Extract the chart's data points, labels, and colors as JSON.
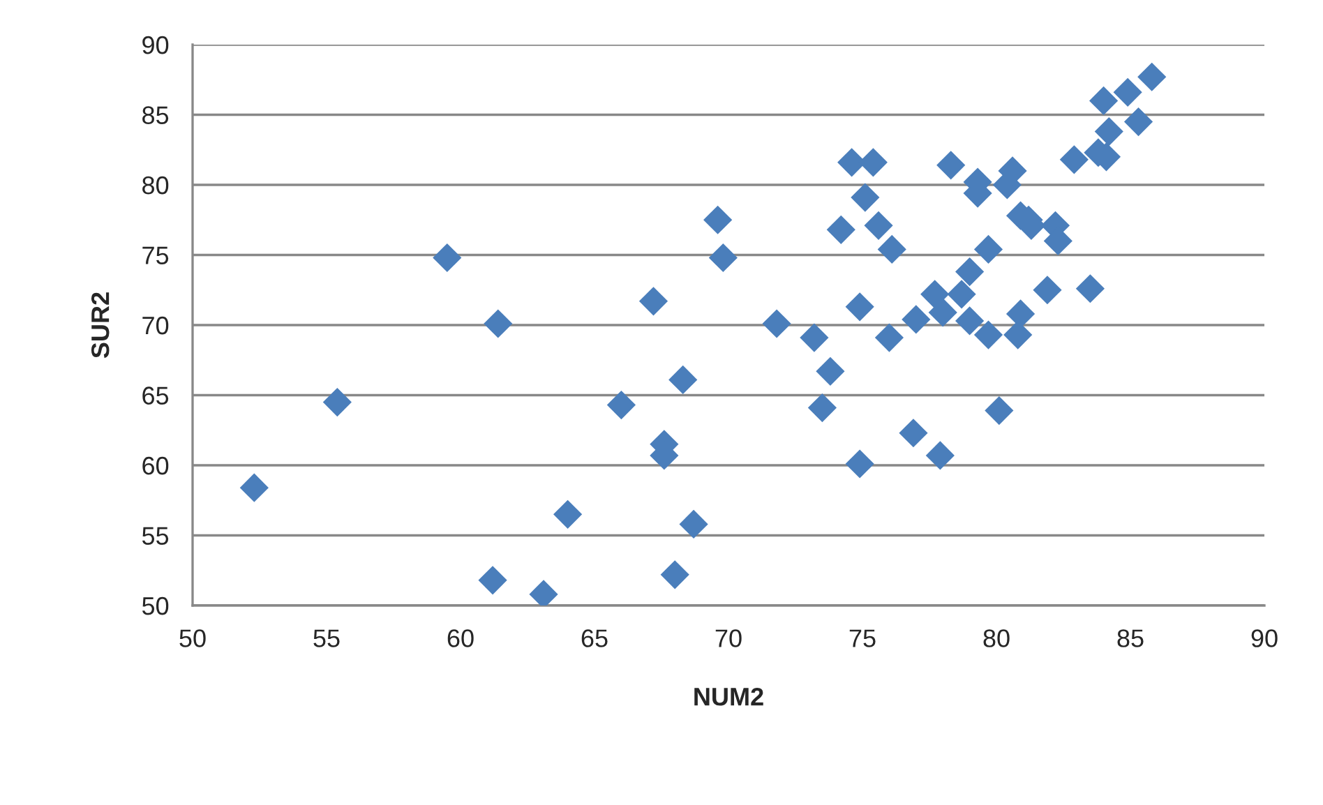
{
  "chart_data": {
    "type": "scatter",
    "xlabel": "NUM2",
    "ylabel": "SUR2",
    "xlim": [
      50,
      90
    ],
    "xticks": [
      50,
      55,
      60,
      65,
      70,
      75,
      80,
      85,
      90
    ],
    "ylim": [
      50,
      90
    ],
    "yticks": [
      50,
      55,
      60,
      65,
      70,
      75,
      80,
      85,
      90
    ],
    "grid": "y",
    "marker": "diamond",
    "series": [
      {
        "color": "#4a7ebb",
        "x": [
          52.3,
          55.4,
          59.5,
          61.4,
          61.2,
          63.1,
          64.0,
          66.0,
          67.2,
          67.6,
          67.6,
          68.0,
          68.3,
          68.7,
          69.6,
          69.8,
          71.8,
          73.2,
          73.5,
          73.8,
          74.2,
          74.6,
          74.9,
          74.9,
          75.1,
          75.4,
          75.6,
          76.1,
          76.0,
          76.9,
          77.0,
          77.7,
          77.9,
          78.0,
          78.3,
          78.7,
          79.0,
          79.0,
          79.3,
          79.3,
          79.7,
          79.7,
          80.1,
          80.4,
          80.6,
          80.8,
          80.9,
          80.9,
          81.2,
          81.3,
          81.9,
          82.2,
          82.3,
          82.9,
          83.5,
          83.8,
          84.0,
          84.1,
          84.2,
          84.9,
          85.3,
          85.8
        ],
        "values": [
          58.4,
          64.5,
          74.8,
          70.1,
          51.8,
          50.8,
          56.5,
          64.3,
          71.7,
          61.5,
          60.7,
          52.2,
          66.1,
          55.8,
          77.5,
          74.8,
          70.1,
          69.1,
          64.1,
          66.7,
          76.8,
          81.6,
          71.3,
          60.1,
          79.1,
          81.6,
          77.1,
          75.4,
          69.1,
          62.3,
          70.4,
          72.2,
          60.7,
          70.9,
          81.4,
          72.2,
          73.8,
          70.3,
          80.2,
          79.4,
          75.4,
          69.3,
          63.9,
          80.0,
          81.0,
          69.3,
          77.8,
          70.8,
          77.5,
          77.1,
          72.5,
          77.1,
          76.0,
          81.8,
          72.6,
          82.3,
          86.0,
          82.0,
          83.8,
          86.6,
          84.5,
          87.7
        ]
      }
    ]
  }
}
